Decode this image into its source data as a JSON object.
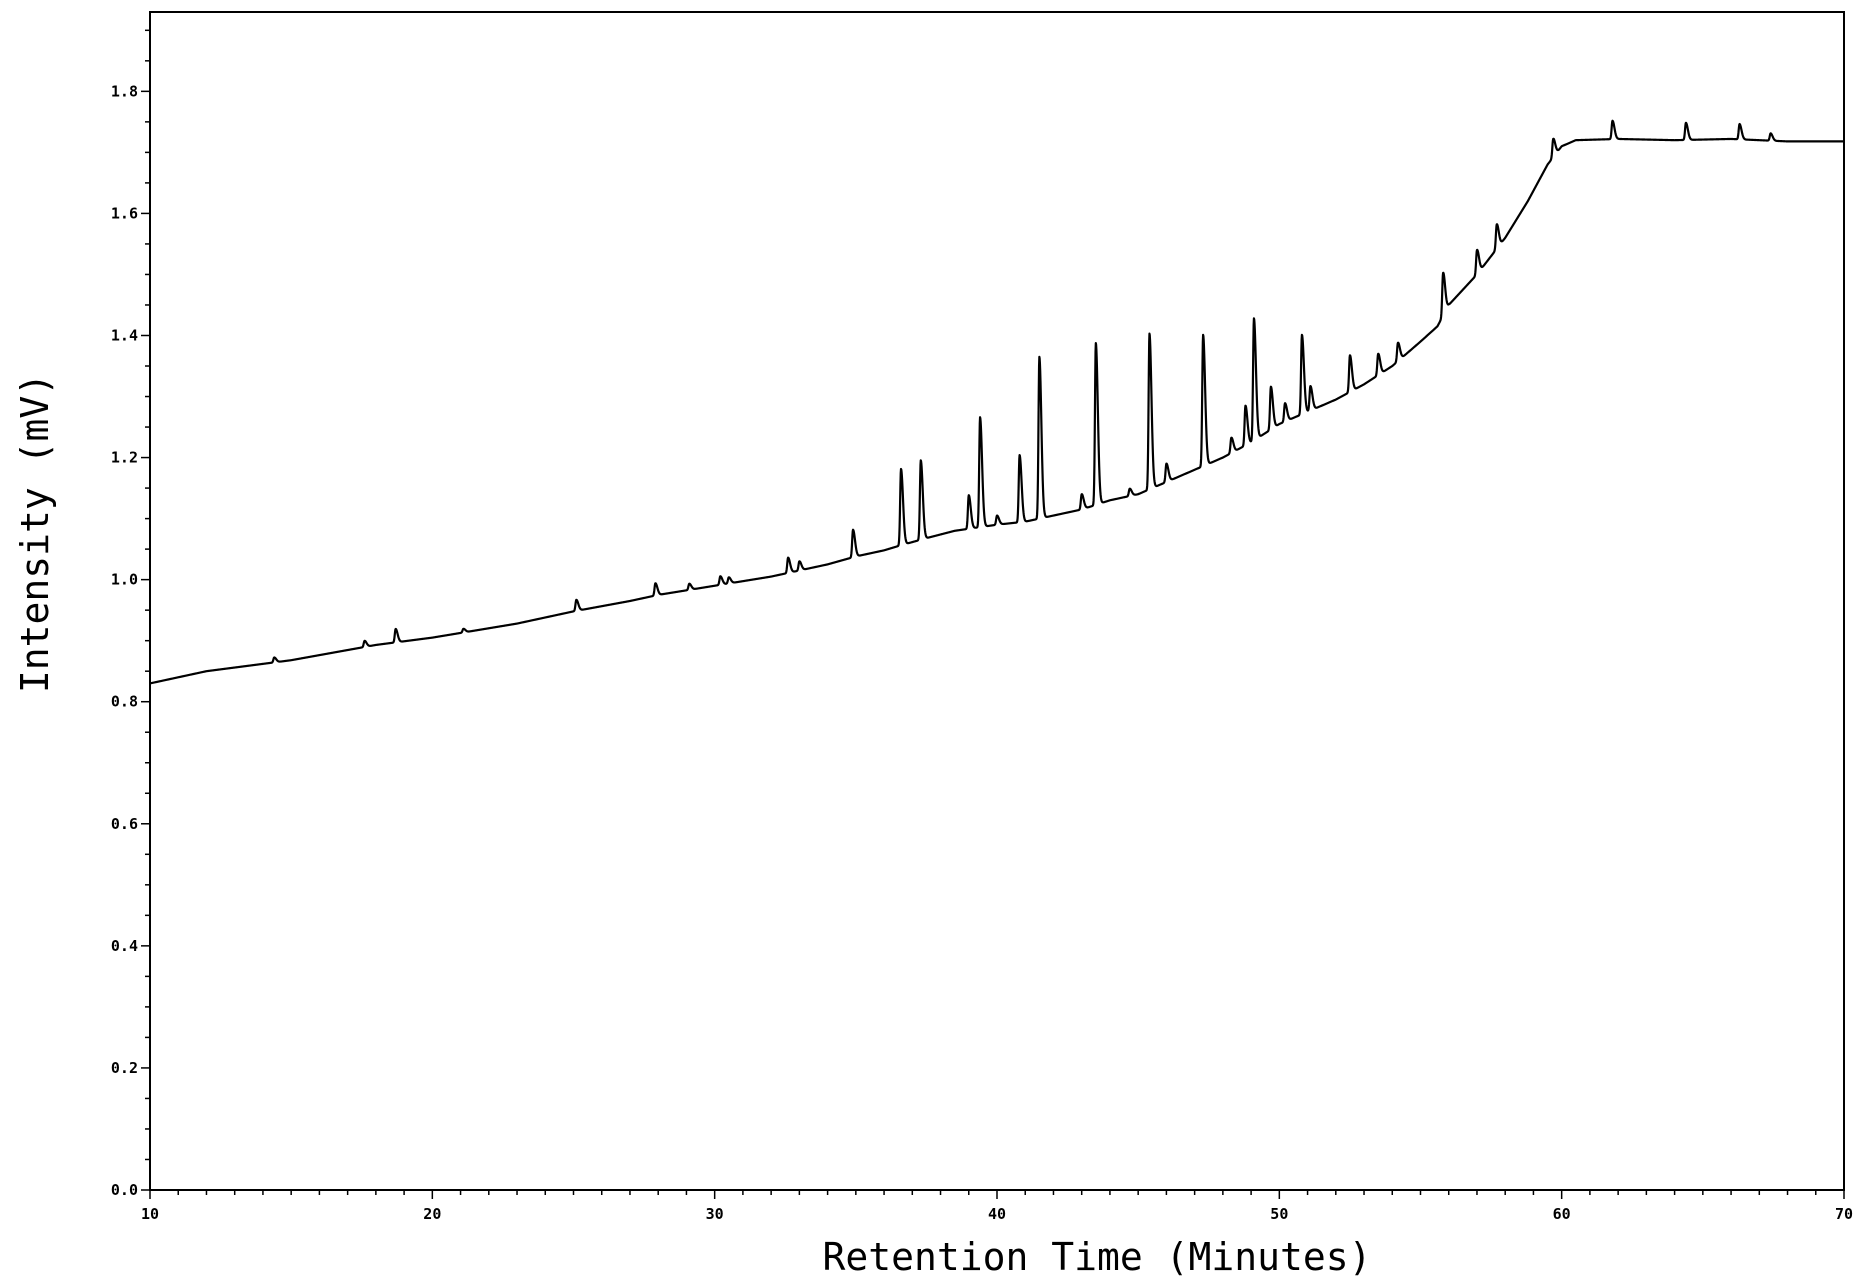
{
  "chart_data": {
    "type": "line",
    "title": "",
    "xlabel": "Retention Time (Minutes)",
    "ylabel": "Intensity (mV)",
    "xlim": [
      10,
      70
    ],
    "ylim": [
      0.0,
      1.93
    ],
    "x_ticks": [
      10,
      20,
      30,
      40,
      50,
      60,
      70
    ],
    "x_tick_labels": [
      "10",
      "20",
      "30",
      "40",
      "50",
      "60",
      "70"
    ],
    "y_ticks": [
      0.0,
      0.2,
      0.4,
      0.6,
      0.8,
      1.0,
      1.2,
      1.4,
      1.6,
      1.8
    ],
    "y_tick_labels": [
      "0.0",
      "0.2",
      "0.4",
      "0.6",
      "0.8",
      "1.0",
      "1.2",
      "1.4",
      "1.6",
      "1.8"
    ],
    "x_minor_step": 1,
    "y_minor_step": 0.05,
    "grid": false,
    "line_color": "#000000",
    "baseline": [
      [
        10,
        0.83
      ],
      [
        12,
        0.85
      ],
      [
        15,
        0.868
      ],
      [
        18,
        0.893
      ],
      [
        20,
        0.905
      ],
      [
        23,
        0.928
      ],
      [
        25,
        0.948
      ],
      [
        27,
        0.965
      ],
      [
        28,
        0.975
      ],
      [
        30,
        0.99
      ],
      [
        32,
        1.005
      ],
      [
        34,
        1.025
      ],
      [
        35,
        1.038
      ],
      [
        36,
        1.048
      ],
      [
        36.5,
        1.055
      ],
      [
        37.5,
        1.068
      ],
      [
        38.5,
        1.08
      ],
      [
        40,
        1.09
      ],
      [
        41,
        1.095
      ],
      [
        42,
        1.105
      ],
      [
        43,
        1.115
      ],
      [
        44,
        1.13
      ],
      [
        45,
        1.14
      ],
      [
        46,
        1.16
      ],
      [
        47,
        1.18
      ],
      [
        48,
        1.2
      ],
      [
        49,
        1.225
      ],
      [
        50,
        1.255
      ],
      [
        51,
        1.275
      ],
      [
        52,
        1.295
      ],
      [
        53,
        1.32
      ],
      [
        54,
        1.35
      ],
      [
        55,
        1.39
      ],
      [
        55.6,
        1.415
      ],
      [
        56,
        1.45
      ],
      [
        57,
        1.5
      ],
      [
        58,
        1.56
      ],
      [
        58.8,
        1.62
      ],
      [
        59.5,
        1.68
      ],
      [
        60,
        1.71
      ],
      [
        60.5,
        1.72
      ],
      [
        62,
        1.722
      ],
      [
        64,
        1.72
      ],
      [
        66,
        1.722
      ],
      [
        68,
        1.718
      ],
      [
        70,
        1.718
      ]
    ],
    "peaks": [
      [
        14.4,
        0.008
      ],
      [
        17.6,
        0.01
      ],
      [
        18.7,
        0.022
      ],
      [
        21.1,
        0.006
      ],
      [
        25.1,
        0.018
      ],
      [
        27.9,
        0.02
      ],
      [
        29.1,
        0.01
      ],
      [
        30.2,
        0.014
      ],
      [
        30.5,
        0.01
      ],
      [
        32.6,
        0.025
      ],
      [
        33.0,
        0.015
      ],
      [
        34.9,
        0.045
      ],
      [
        36.6,
        0.125
      ],
      [
        37.3,
        0.13
      ],
      [
        39.0,
        0.055
      ],
      [
        39.4,
        0.18
      ],
      [
        40.0,
        0.015
      ],
      [
        40.8,
        0.11
      ],
      [
        41.5,
        0.265
      ],
      [
        43.0,
        0.025
      ],
      [
        43.5,
        0.265
      ],
      [
        44.7,
        0.012
      ],
      [
        45.4,
        0.255
      ],
      [
        46.0,
        0.03
      ],
      [
        47.3,
        0.215
      ],
      [
        48.3,
        0.025
      ],
      [
        48.8,
        0.065
      ],
      [
        49.1,
        0.2
      ],
      [
        49.7,
        0.07
      ],
      [
        50.2,
        0.03
      ],
      [
        50.8,
        0.13
      ],
      [
        51.1,
        0.04
      ],
      [
        52.5,
        0.06
      ],
      [
        53.5,
        0.035
      ],
      [
        54.2,
        0.03
      ],
      [
        55.8,
        0.07
      ],
      [
        57.0,
        0.04
      ],
      [
        57.7,
        0.04
      ],
      [
        59.7,
        0.03
      ],
      [
        61.8,
        0.03
      ],
      [
        64.4,
        0.028
      ],
      [
        66.3,
        0.025
      ],
      [
        67.4,
        0.012
      ]
    ]
  }
}
